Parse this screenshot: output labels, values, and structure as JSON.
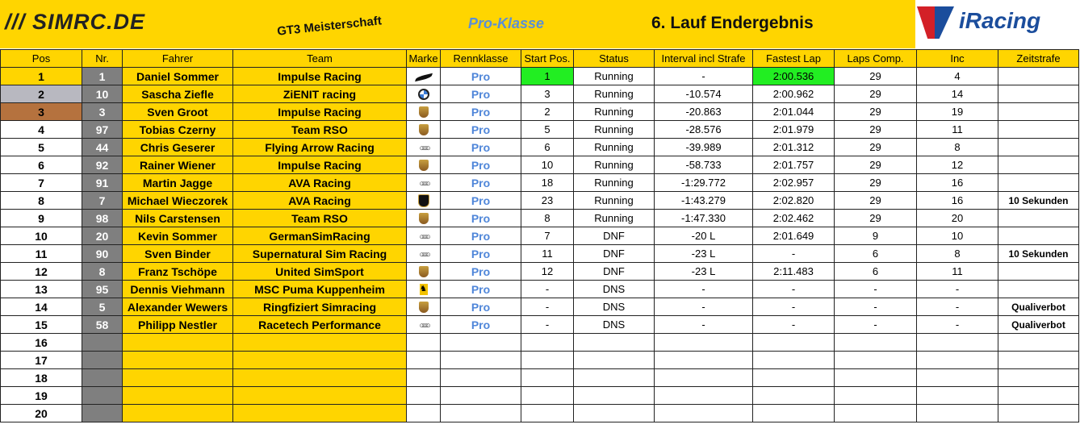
{
  "header": {
    "logo": "/// SIMRC.DE",
    "series": "GT3 Meisterschaft",
    "klasse": "Pro-Klasse",
    "title": "6. Lauf Endergebnis",
    "sponsor_logo": "iRacing"
  },
  "columns": [
    "Pos",
    "Nr.",
    "Fahrer",
    "Team",
    "Marke",
    "Rennklasse",
    "Start Pos.",
    "Status",
    "Interval incl Strafe",
    "Fastest Lap",
    "Laps Comp.",
    "Inc",
    "Zeitstrafe"
  ],
  "colors": {
    "yellow": "#FFD500",
    "gray": "#7F7F7F",
    "pro": "#4F86D9",
    "fastest": "#22EE22",
    "silver": "#B8B8C0",
    "bronze": "#B5723E"
  },
  "rows": [
    {
      "pos": "1",
      "nr": "1",
      "fahrer": "Daniel Sommer",
      "team": "Impulse Racing",
      "marke": "mclaren-icon",
      "klasse": "Pro",
      "start": "1",
      "status": "Running",
      "interval": "-",
      "fastest": "2:00.536",
      "laps": "29",
      "inc": "4",
      "strafe": ""
    },
    {
      "pos": "2",
      "nr": "10",
      "fahrer": "Sascha Ziefle",
      "team": "ZiENIT racing",
      "marke": "bmw-icon",
      "klasse": "Pro",
      "start": "3",
      "status": "Running",
      "interval": "-10.574",
      "fastest": "2:00.962",
      "laps": "29",
      "inc": "14",
      "strafe": ""
    },
    {
      "pos": "3",
      "nr": "3",
      "fahrer": "Sven Groot",
      "team": "Impulse Racing",
      "marke": "porsche-icon",
      "klasse": "Pro",
      "start": "2",
      "status": "Running",
      "interval": "-20.863",
      "fastest": "2:01.044",
      "laps": "29",
      "inc": "19",
      "strafe": ""
    },
    {
      "pos": "4",
      "nr": "97",
      "fahrer": "Tobias Czerny",
      "team": "Team RSO",
      "marke": "porsche-icon",
      "klasse": "Pro",
      "start": "5",
      "status": "Running",
      "interval": "-28.576",
      "fastest": "2:01.979",
      "laps": "29",
      "inc": "11",
      "strafe": ""
    },
    {
      "pos": "5",
      "nr": "44",
      "fahrer": "Chris Geserer",
      "team": "Flying Arrow Racing",
      "marke": "audi-icon",
      "klasse": "Pro",
      "start": "6",
      "status": "Running",
      "interval": "-39.989",
      "fastest": "2:01.312",
      "laps": "29",
      "inc": "8",
      "strafe": ""
    },
    {
      "pos": "6",
      "nr": "92",
      "fahrer": "Rainer Wiener",
      "team": "Impulse Racing",
      "marke": "porsche-icon",
      "klasse": "Pro",
      "start": "10",
      "status": "Running",
      "interval": "-58.733",
      "fastest": "2:01.757",
      "laps": "29",
      "inc": "12",
      "strafe": ""
    },
    {
      "pos": "7",
      "nr": "91",
      "fahrer": "Martin Jagge",
      "team": "AVA Racing",
      "marke": "audi-icon",
      "klasse": "Pro",
      "start": "18",
      "status": "Running",
      "interval": "-1:29.772",
      "fastest": "2:02.957",
      "laps": "29",
      "inc": "16",
      "strafe": ""
    },
    {
      "pos": "8",
      "nr": "7",
      "fahrer": "Michael Wieczorek",
      "team": "AVA Racing",
      "marke": "lamborghini-icon",
      "klasse": "Pro",
      "start": "23",
      "status": "Running",
      "interval": "-1:43.279",
      "fastest": "2:02.820",
      "laps": "29",
      "inc": "16",
      "strafe": "10 Sekunden"
    },
    {
      "pos": "9",
      "nr": "98",
      "fahrer": "Nils Carstensen",
      "team": "Team RSO",
      "marke": "porsche-icon",
      "klasse": "Pro",
      "start": "8",
      "status": "Running",
      "interval": "-1:47.330",
      "fastest": "2:02.462",
      "laps": "29",
      "inc": "20",
      "strafe": ""
    },
    {
      "pos": "10",
      "nr": "20",
      "fahrer": "Kevin Sommer",
      "team": "GermanSimRacing",
      "marke": "audi-icon",
      "klasse": "Pro",
      "start": "7",
      "status": "DNF",
      "interval": "-20 L",
      "fastest": "2:01.649",
      "laps": "9",
      "inc": "10",
      "strafe": ""
    },
    {
      "pos": "11",
      "nr": "90",
      "fahrer": "Sven Binder",
      "team": "Supernatural Sim Racing",
      "marke": "audi-icon",
      "klasse": "Pro",
      "start": "11",
      "status": "DNF",
      "interval": "-23 L",
      "fastest": "-",
      "laps": "6",
      "inc": "8",
      "strafe": "10 Sekunden"
    },
    {
      "pos": "12",
      "nr": "8",
      "fahrer": "Franz Tschöpe",
      "team": "United SimSport",
      "marke": "porsche-icon",
      "klasse": "Pro",
      "start": "12",
      "status": "DNF",
      "interval": "-23 L",
      "fastest": "2:11.483",
      "laps": "6",
      "inc": "11",
      "strafe": ""
    },
    {
      "pos": "13",
      "nr": "95",
      "fahrer": "Dennis Viehmann",
      "team": "MSC Puma Kuppenheim",
      "marke": "ferrari-icon",
      "klasse": "Pro",
      "start": "-",
      "status": "DNS",
      "interval": "-",
      "fastest": "-",
      "laps": "-",
      "inc": "-",
      "strafe": ""
    },
    {
      "pos": "14",
      "nr": "5",
      "fahrer": "Alexander Wewers",
      "team": "Ringfiziert Simracing",
      "marke": "porsche-icon",
      "klasse": "Pro",
      "start": "-",
      "status": "DNS",
      "interval": "-",
      "fastest": "-",
      "laps": "-",
      "inc": "-",
      "strafe": "Qualiverbot"
    },
    {
      "pos": "15",
      "nr": "58",
      "fahrer": "Philipp Nestler",
      "team": "Racetech Performance",
      "marke": "audi-icon",
      "klasse": "Pro",
      "start": "-",
      "status": "DNS",
      "interval": "-",
      "fastest": "-",
      "laps": "-",
      "inc": "-",
      "strafe": "Qualiverbot"
    },
    {
      "pos": "16"
    },
    {
      "pos": "17"
    },
    {
      "pos": "18"
    },
    {
      "pos": "19"
    },
    {
      "pos": "20"
    }
  ]
}
